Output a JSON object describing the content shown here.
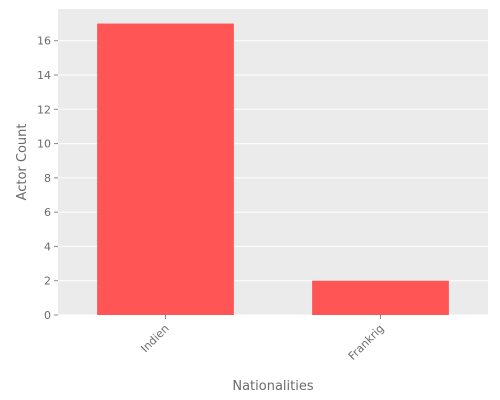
{
  "chart_data": {
    "type": "bar",
    "title": "",
    "xlabel": "Nationalities",
    "ylabel": "Actor Count",
    "categories": [
      "Indien",
      "Frankrig"
    ],
    "values": [
      17,
      2
    ],
    "ylim": [
      0,
      17.85
    ],
    "yticks": [
      0,
      2,
      4,
      6,
      8,
      10,
      12,
      14,
      16
    ],
    "grid": true,
    "colors": {
      "bar": "#ff5555",
      "plot_background": "#ebebeb",
      "grid": "#ffffff",
      "text": "#6b6b6b"
    }
  }
}
